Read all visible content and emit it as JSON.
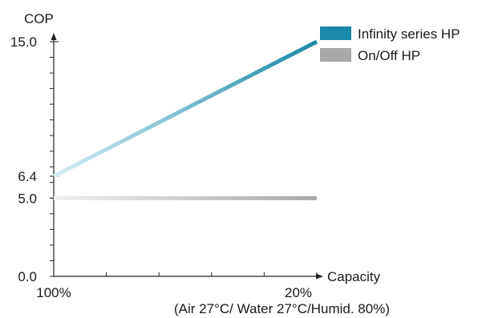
{
  "chart_data": {
    "type": "line",
    "ylabel": "COP",
    "xlabel": "Capacity",
    "x_tick_labels": [
      "100%",
      "20%"
    ],
    "x_note": "(Air 27°C/ Water 27°C/Humid. 80%)",
    "y_tick_labels": [
      "0.0",
      "5.0",
      "6.4",
      "15.0"
    ],
    "x": [
      100,
      20
    ],
    "xlim": [
      100,
      20
    ],
    "ylim": [
      0,
      15
    ],
    "series": [
      {
        "name": "Infinity series HP",
        "values": [
          6.4,
          15.0
        ],
        "color": "#1a8aa8",
        "color_start": "#d9eef5"
      },
      {
        "name": "On/Off HP",
        "values": [
          5.0,
          5.0
        ],
        "color": "#a8a8a8",
        "color_start": "#f0f0f0"
      }
    ]
  }
}
